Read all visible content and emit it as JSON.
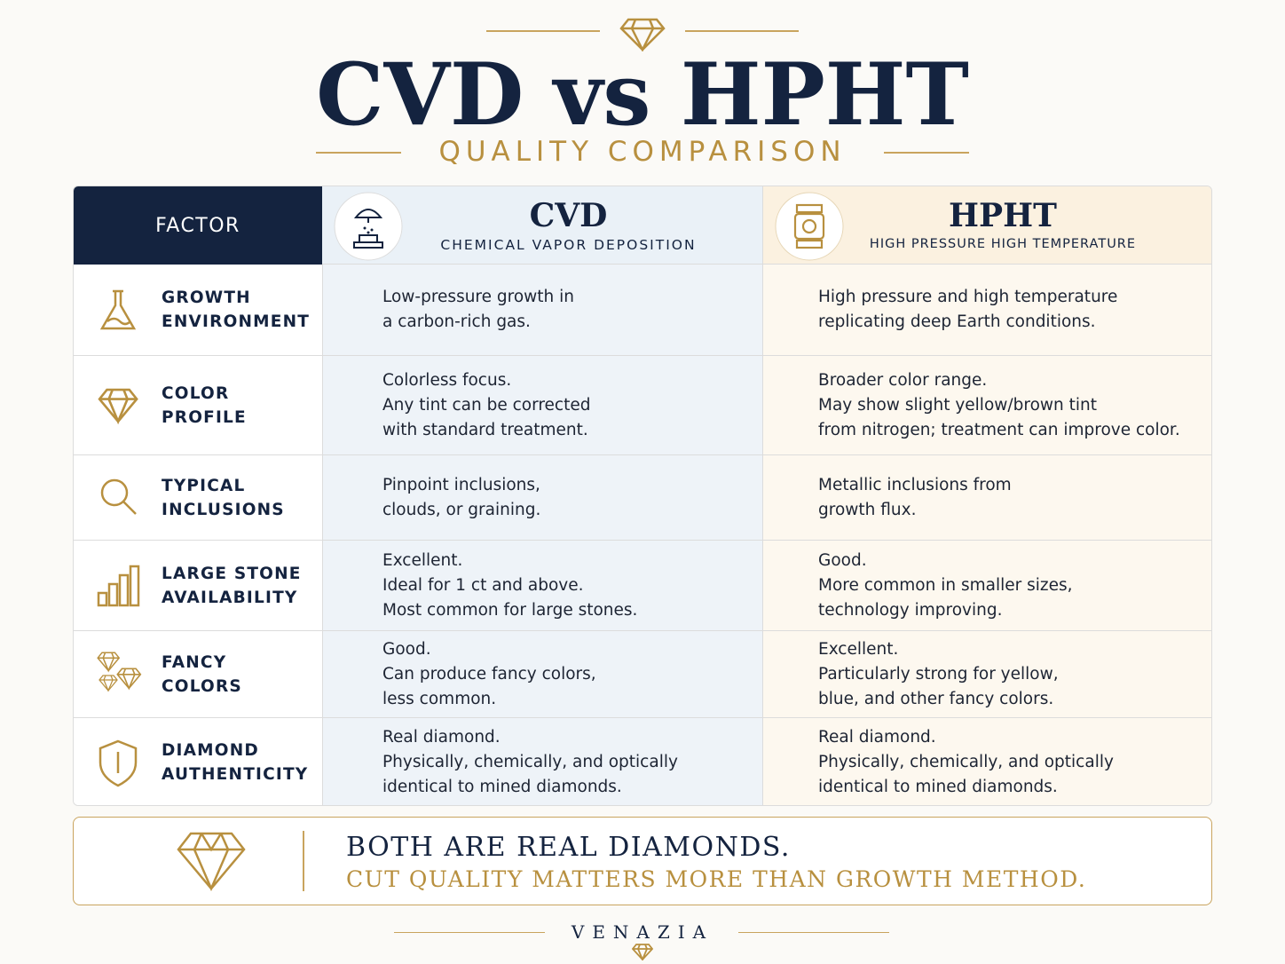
{
  "header": {
    "title": "CVD vs HPHT",
    "subtitle": "QUALITY COMPARISON"
  },
  "table": {
    "columns": [
      {
        "title": "FACTOR"
      },
      {
        "title": "CVD",
        "subtitle": "CHEMICAL VAPOR DEPOSITION"
      },
      {
        "title": "HPHT",
        "subtitle": "HIGH PRESSURE HIGH TEMPERATURE"
      }
    ],
    "rows": [
      {
        "factor": [
          "GROWTH",
          "ENVIRONMENT"
        ],
        "cvd": [
          "Low-pressure growth in",
          "a carbon-rich gas."
        ],
        "hpht": [
          "High pressure and high temperature",
          "replicating deep Earth conditions."
        ]
      },
      {
        "factor": [
          "COLOR",
          "PROFILE"
        ],
        "cvd": [
          "Colorless focus.",
          "Any tint can be corrected",
          "with standard treatment."
        ],
        "hpht": [
          "Broader color range.",
          "May show slight yellow/brown tint",
          "from nitrogen; treatment can improve color."
        ]
      },
      {
        "factor": [
          "TYPICAL",
          "INCLUSIONS"
        ],
        "cvd": [
          "Pinpoint inclusions,",
          "clouds, or graining."
        ],
        "hpht": [
          "Metallic inclusions from",
          "growth flux."
        ]
      },
      {
        "factor": [
          "LARGE STONE",
          "AVAILABILITY"
        ],
        "cvd": [
          "Excellent.",
          "Ideal for 1 ct and above.",
          "Most common for large stones."
        ],
        "hpht": [
          "Good.",
          "More common in smaller sizes,",
          "technology improving."
        ]
      },
      {
        "factor": [
          "FANCY",
          "COLORS"
        ],
        "cvd": [
          "Good.",
          "Can produce fancy colors,",
          "less common."
        ],
        "hpht": [
          "Excellent.",
          "Particularly strong for yellow,",
          "blue, and other fancy colors."
        ]
      },
      {
        "factor": [
          "DIAMOND",
          "AUTHENTICITY"
        ],
        "cvd": [
          "Real diamond.",
          "Physically, chemically, and optically",
          "identical to mined diamonds."
        ],
        "hpht": [
          "Real diamond.",
          "Physically, chemically, and optically",
          "identical to mined diamonds."
        ]
      }
    ]
  },
  "footer": {
    "line1": "BOTH ARE REAL DIAMONDS.",
    "line2": "CUT QUALITY MATTERS MORE THAN GROWTH METHOD."
  },
  "brand": "VENAZIA"
}
